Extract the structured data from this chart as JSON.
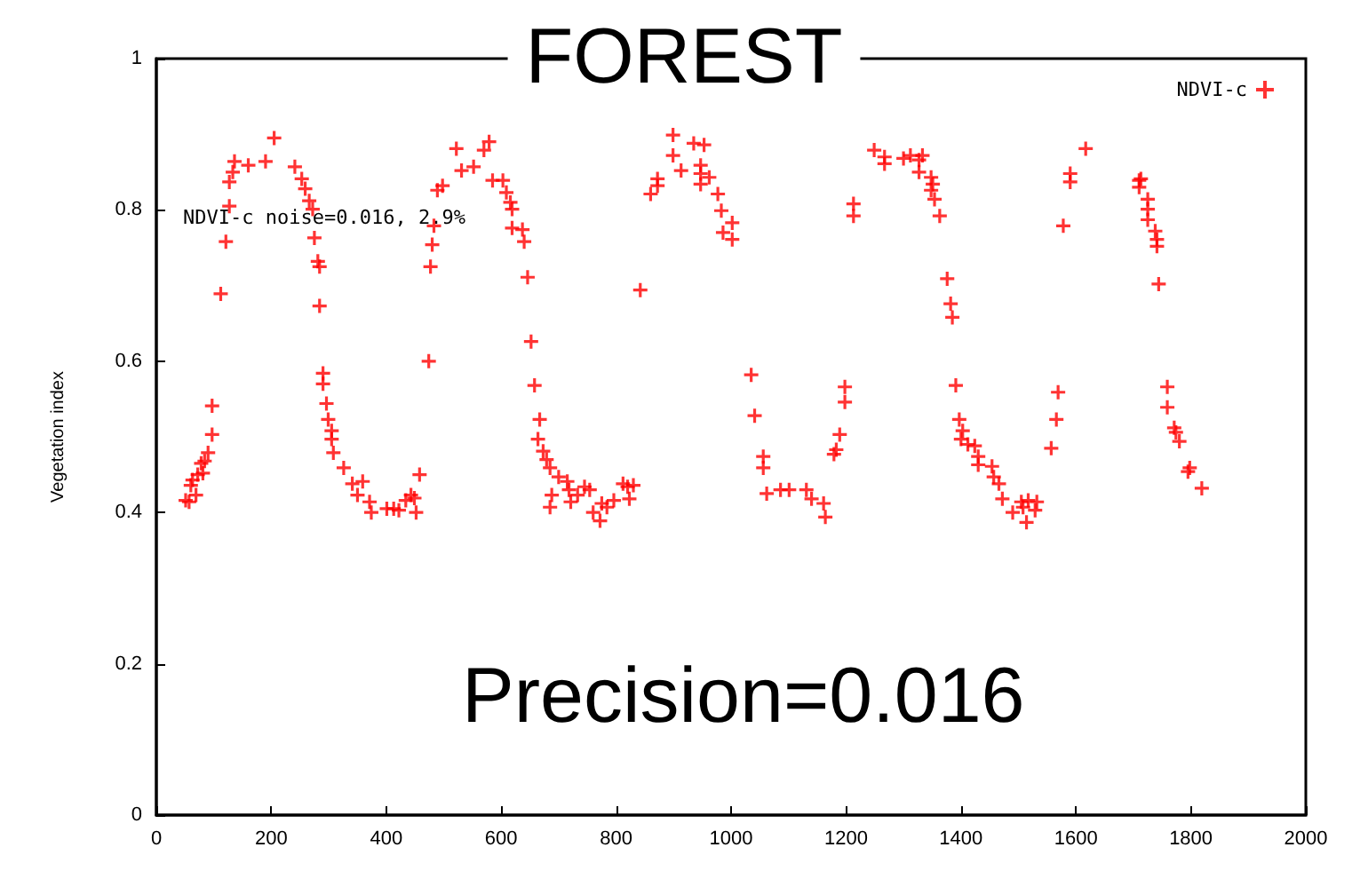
{
  "chart_data": {
    "type": "scatter",
    "title": "FOREST",
    "ylabel": "Vegetation index",
    "legend": "top right",
    "marker": "cross",
    "grid": false,
    "annotations": [
      "NDVI-c noise=0.016, 2.9%",
      "Precision=0.016"
    ],
    "xlim": [
      0,
      2000
    ],
    "xticks": [
      0,
      200,
      400,
      600,
      800,
      1000,
      1200,
      1400,
      1600,
      1800,
      2000
    ],
    "ylim": [
      0,
      1
    ],
    "yticks": [
      0,
      0.2,
      0.4,
      0.6,
      0.8,
      1
    ],
    "series": [
      {
        "name": "NDVI-c",
        "color": "#ff0000",
        "x": [
          51,
          57,
          60,
          63,
          69,
          72,
          78,
          81,
          84,
          90,
          97,
          97,
          112,
          121,
          127,
          127,
          133,
          136,
          160,
          190,
          205,
          241,
          253,
          259,
          266,
          272,
          275,
          281,
          284,
          284,
          290,
          290,
          296,
          299,
          305,
          305,
          308,
          326,
          341,
          350,
          359,
          371,
          374,
          401,
          413,
          422,
          434,
          443,
          449,
          452,
          458,
          474,
          477,
          480,
          483,
          489,
          498,
          522,
          531,
          552,
          570,
          579,
          585,
          603,
          609,
          616,
          619,
          619,
          637,
          640,
          646,
          652,
          658,
          664,
          667,
          673,
          679,
          685,
          685,
          688,
          700,
          715,
          718,
          721,
          733,
          745,
          754,
          760,
          772,
          775,
          784,
          796,
          812,
          820,
          823,
          830,
          842,
          860,
          872,
          872,
          899,
          899,
          913,
          935,
          947,
          947,
          947,
          953,
          962,
          977,
          983,
          986,
          1002,
          1002,
          1035,
          1041,
          1056,
          1056,
          1062,
          1086,
          1101,
          1131,
          1140,
          1161,
          1164,
          1179,
          1183,
          1189,
          1198,
          1198,
          1213,
          1213,
          1249,
          1267,
          1267,
          1300,
          1312,
          1327,
          1333,
          1327,
          1348,
          1351,
          1348,
          1354,
          1363,
          1376,
          1382,
          1385,
          1391,
          1397,
          1400,
          1403,
          1412,
          1424,
          1430,
          1430,
          1454,
          1457,
          1466,
          1472,
          1490,
          1505,
          1508,
          1514,
          1517,
          1529,
          1532,
          1557,
          1566,
          1569,
          1578,
          1590,
          1590,
          1617,
          1710,
          1713,
          1710,
          1725,
          1725,
          1725,
          1738,
          1741,
          1741,
          1744,
          1759,
          1759,
          1771,
          1774,
          1780,
          1795,
          1798,
          1819
        ],
        "values": [
          0.416,
          0.414,
          0.436,
          0.443,
          0.423,
          0.45,
          0.465,
          0.452,
          0.468,
          0.479,
          0.503,
          0.541,
          0.689,
          0.758,
          0.805,
          0.837,
          0.85,
          0.864,
          0.859,
          0.864,
          0.895,
          0.857,
          0.841,
          0.828,
          0.812,
          0.801,
          0.763,
          0.732,
          0.725,
          0.673,
          0.584,
          0.57,
          0.544,
          0.523,
          0.508,
          0.497,
          0.479,
          0.459,
          0.438,
          0.423,
          0.441,
          0.414,
          0.4,
          0.405,
          0.405,
          0.403,
          0.416,
          0.423,
          0.419,
          0.4,
          0.45,
          0.6,
          0.725,
          0.754,
          0.779,
          0.826,
          0.832,
          0.881,
          0.852,
          0.857,
          0.879,
          0.89,
          0.839,
          0.839,
          0.823,
          0.81,
          0.801,
          0.776,
          0.774,
          0.758,
          0.711,
          0.626,
          0.568,
          0.497,
          0.523,
          0.481,
          0.47,
          0.459,
          0.407,
          0.423,
          0.447,
          0.441,
          0.43,
          0.414,
          0.423,
          0.434,
          0.43,
          0.4,
          0.389,
          0.412,
          0.407,
          0.416,
          0.438,
          0.434,
          0.418,
          0.436,
          0.694,
          0.821,
          0.832,
          0.841,
          0.899,
          0.872,
          0.852,
          0.888,
          0.859,
          0.848,
          0.834,
          0.886,
          0.843,
          0.821,
          0.799,
          0.77,
          0.761,
          0.783,
          0.582,
          0.528,
          0.474,
          0.459,
          0.425,
          0.43,
          0.43,
          0.43,
          0.418,
          0.412,
          0.394,
          0.477,
          0.483,
          0.503,
          0.566,
          0.546,
          0.792,
          0.808,
          0.879,
          0.87,
          0.861,
          0.868,
          0.872,
          0.866,
          0.872,
          0.85,
          0.843,
          0.834,
          0.826,
          0.814,
          0.792,
          0.709,
          0.676,
          0.658,
          0.568,
          0.523,
          0.497,
          0.508,
          0.49,
          0.488,
          0.474,
          0.463,
          0.461,
          0.447,
          0.438,
          0.418,
          0.4,
          0.414,
          0.407,
          0.387,
          0.416,
          0.403,
          0.414,
          0.485,
          0.523,
          0.559,
          0.779,
          0.848,
          0.837,
          0.881,
          0.839,
          0.841,
          0.83,
          0.814,
          0.801,
          0.787,
          0.772,
          0.761,
          0.752,
          0.702,
          0.566,
          0.539,
          0.512,
          0.506,
          0.494,
          0.454,
          0.459,
          0.432
        ]
      }
    ]
  }
}
